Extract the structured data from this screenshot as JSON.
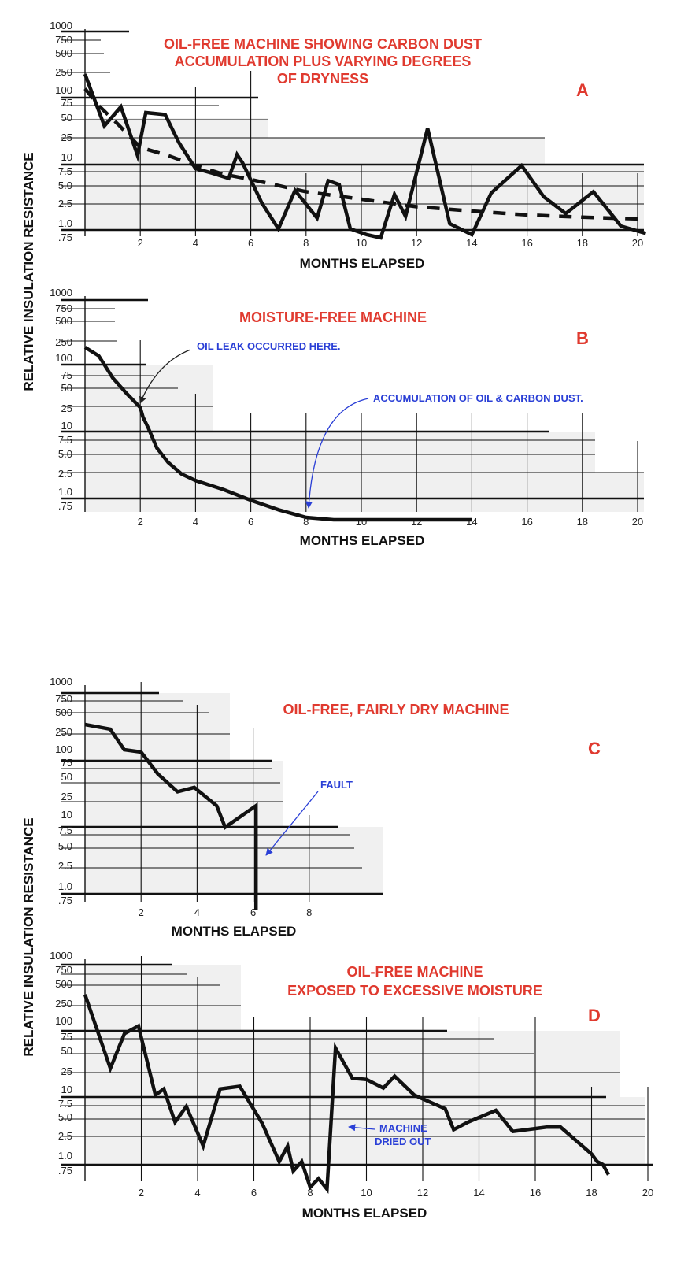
{
  "y_axis_label": "RELATIVE INSULATION RESISTANCE",
  "chart_data": [
    {
      "id": "A",
      "type": "line",
      "letter": "A",
      "title": [
        "OIL-FREE MACHINE SHOWING CARBON DUST",
        "ACCUMULATION PLUS VARYING DEGREES",
        "OF DRYNESS"
      ],
      "xlabel": "MONTHS ELAPSED",
      "ylabel": "RELATIVE INSULATION RESISTANCE",
      "y_scale": "log",
      "ylim": [
        0.7,
        1000
      ],
      "xlim": [
        0,
        20.3
      ],
      "x_ticks": [
        2,
        4,
        6,
        8,
        10,
        12,
        14,
        16,
        18,
        20
      ],
      "y_tick_labels": [
        "1000",
        "750",
        "500",
        "250",
        "100",
        "75",
        "50",
        "25",
        "10",
        "7.5",
        "5.0",
        "2.5",
        "1.0",
        ".75"
      ],
      "series": [
        {
          "style": "solid",
          "x": [
            0,
            0.7,
            1.3,
            1.9,
            2.2,
            2.9,
            3.4,
            4.0,
            4.6,
            5.2,
            5.5,
            5.7,
            6.4,
            7.0,
            7.6,
            8.4,
            8.8,
            9.2,
            9.6,
            10.2,
            10.7,
            11.2,
            11.6,
            12.4,
            13.2,
            14.0,
            14.7,
            15.8,
            16.6,
            17.4,
            18.4,
            19.4,
            20.3
          ],
          "y": [
            230,
            38,
            68,
            11,
            58,
            55,
            20,
            8,
            7.2,
            6.2,
            11.5,
            9,
            2.6,
            0.9,
            4.2,
            1.3,
            5.8,
            5.2,
            0.9,
            0.8,
            0.75,
            3.6,
            1.4,
            35,
            1.0,
            0.8,
            3.8,
            8.5,
            3.3,
            1.6,
            4.0,
            0.95,
            0.82
          ]
        },
        {
          "style": "dashed",
          "x": [
            0,
            0.5,
            1.2,
            2.0,
            3.0,
            4.0,
            5.0,
            6.0,
            8.0,
            10.0,
            12.0,
            14.0,
            16.0,
            18.0,
            20.0
          ],
          "y": [
            110,
            70,
            40,
            16,
            11,
            8.5,
            7.0,
            6.0,
            4.0,
            3.0,
            2.2,
            1.8,
            1.5,
            1.35,
            1.25
          ]
        }
      ]
    },
    {
      "id": "B",
      "type": "line",
      "letter": "B",
      "title": [
        "MOISTURE-FREE MACHINE"
      ],
      "xlabel": "MONTHS ELAPSED",
      "ylabel": "RELATIVE INSULATION RESISTANCE",
      "y_scale": "log",
      "ylim": [
        0.7,
        1000
      ],
      "xlim": [
        0,
        20.3
      ],
      "x_ticks": [
        2,
        4,
        6,
        8,
        10,
        12,
        14,
        16,
        18,
        20
      ],
      "y_tick_labels": [
        "1000",
        "750",
        "500",
        "250",
        "100",
        "75",
        "50",
        "25",
        "10",
        "7.5",
        "5.0",
        "2.5",
        "1.0",
        ".75"
      ],
      "annotations": [
        {
          "text": "OIL LEAK OCCURRED HERE.",
          "x": 2.0,
          "y": 28
        },
        {
          "text": "ACCUMULATION OF OIL & CARBON DUST.",
          "x": 8.0,
          "y": 0.72
        }
      ],
      "series": [
        {
          "style": "solid",
          "x": [
            0,
            0.5,
            1.0,
            1.5,
            2.0,
            2.1,
            2.3,
            2.6,
            3.0,
            3.5,
            4.0,
            5.0,
            6.0,
            7.0,
            8.0,
            9.0,
            10.0,
            11.0,
            12.0,
            13.0,
            14.0
          ],
          "y": [
            190,
            115,
            70,
            42,
            26,
            16,
            9.5,
            6.0,
            3.8,
            2.5,
            1.8,
            1.15,
            0.85,
            0.7,
            0.6,
            0.55,
            0.52,
            0.5,
            0.5,
            0.51,
            0.53
          ]
        }
      ]
    },
    {
      "id": "C",
      "type": "line",
      "letter": "C",
      "title": [
        "OIL-FREE, FAIRLY DRY MACHINE"
      ],
      "xlabel": "MONTHS ELAPSED",
      "ylabel": "RELATIVE INSULATION RESISTANCE",
      "y_scale": "log",
      "ylim": [
        0.7,
        1000
      ],
      "xlim": [
        0,
        10.5
      ],
      "x_ticks": [
        2,
        4,
        6,
        8
      ],
      "y_tick_labels": [
        "1000",
        "750",
        "500",
        "250",
        "100",
        "75",
        "50",
        "25",
        "10",
        "7.5",
        "5.0",
        "2.5",
        "1.0",
        ".75"
      ],
      "annotations": [
        {
          "text": "FAULT",
          "x": 6.3,
          "y": 2.0
        }
      ],
      "series": [
        {
          "style": "solid",
          "x": [
            0,
            0.9,
            1.4,
            2.0,
            2.6,
            3.3,
            3.9,
            4.7,
            5.0,
            6.1,
            6.1
          ],
          "y": [
            330,
            280,
            100,
            95,
            55,
            30,
            35,
            16,
            8,
            16,
            0.5
          ]
        }
      ]
    },
    {
      "id": "D",
      "type": "line",
      "letter": "D",
      "title": [
        "OIL-FREE MACHINE",
        "EXPOSED TO EXCESSIVE MOISTURE"
      ],
      "xlabel": "MONTHS ELAPSED",
      "ylabel": "RELATIVE INSULATION RESISTANCE",
      "y_scale": "log",
      "ylim": [
        0.7,
        1000
      ],
      "xlim": [
        0,
        20.3
      ],
      "x_ticks": [
        2,
        4,
        6,
        8,
        10,
        12,
        14,
        16,
        18,
        20
      ],
      "y_tick_labels": [
        "1000",
        "750",
        "500",
        "250",
        "100",
        "75",
        "50",
        "25",
        "10",
        "7.5",
        "5.0",
        "2.5",
        "1.0",
        ".75"
      ],
      "annotations": [
        {
          "text": "MACHINE",
          "x": 9.3,
          "y": 3.3
        },
        {
          "text": "DRIED OUT",
          "x": 9.3,
          "y": 3.3
        }
      ],
      "series": [
        {
          "style": "solid",
          "x": [
            0,
            0.9,
            1.4,
            1.9,
            2.5,
            2.8,
            3.2,
            3.6,
            4.2,
            4.8,
            5.5,
            6.3,
            6.9,
            7.2,
            7.4,
            7.7,
            8.0,
            8.3,
            8.6,
            8.9,
            9.5,
            10.0,
            10.6,
            11.0,
            11.7,
            12.8,
            13.1,
            13.6,
            14.6,
            15.2,
            16.4,
            16.9,
            18.0,
            18.2,
            18.4,
            18.6
          ],
          "y": [
            350,
            28,
            80,
            92,
            9,
            10.5,
            4.2,
            7,
            1.6,
            10.5,
            12,
            4.0,
            0.9,
            1.6,
            0.75,
            0.9,
            0.55,
            0.65,
            0.5,
            55,
            18,
            17,
            11,
            20,
            9,
            6.5,
            3.2,
            4.2,
            6.2,
            3.0,
            3.5,
            3.5,
            1.1,
            0.9,
            0.85,
            0.7
          ]
        }
      ]
    }
  ]
}
